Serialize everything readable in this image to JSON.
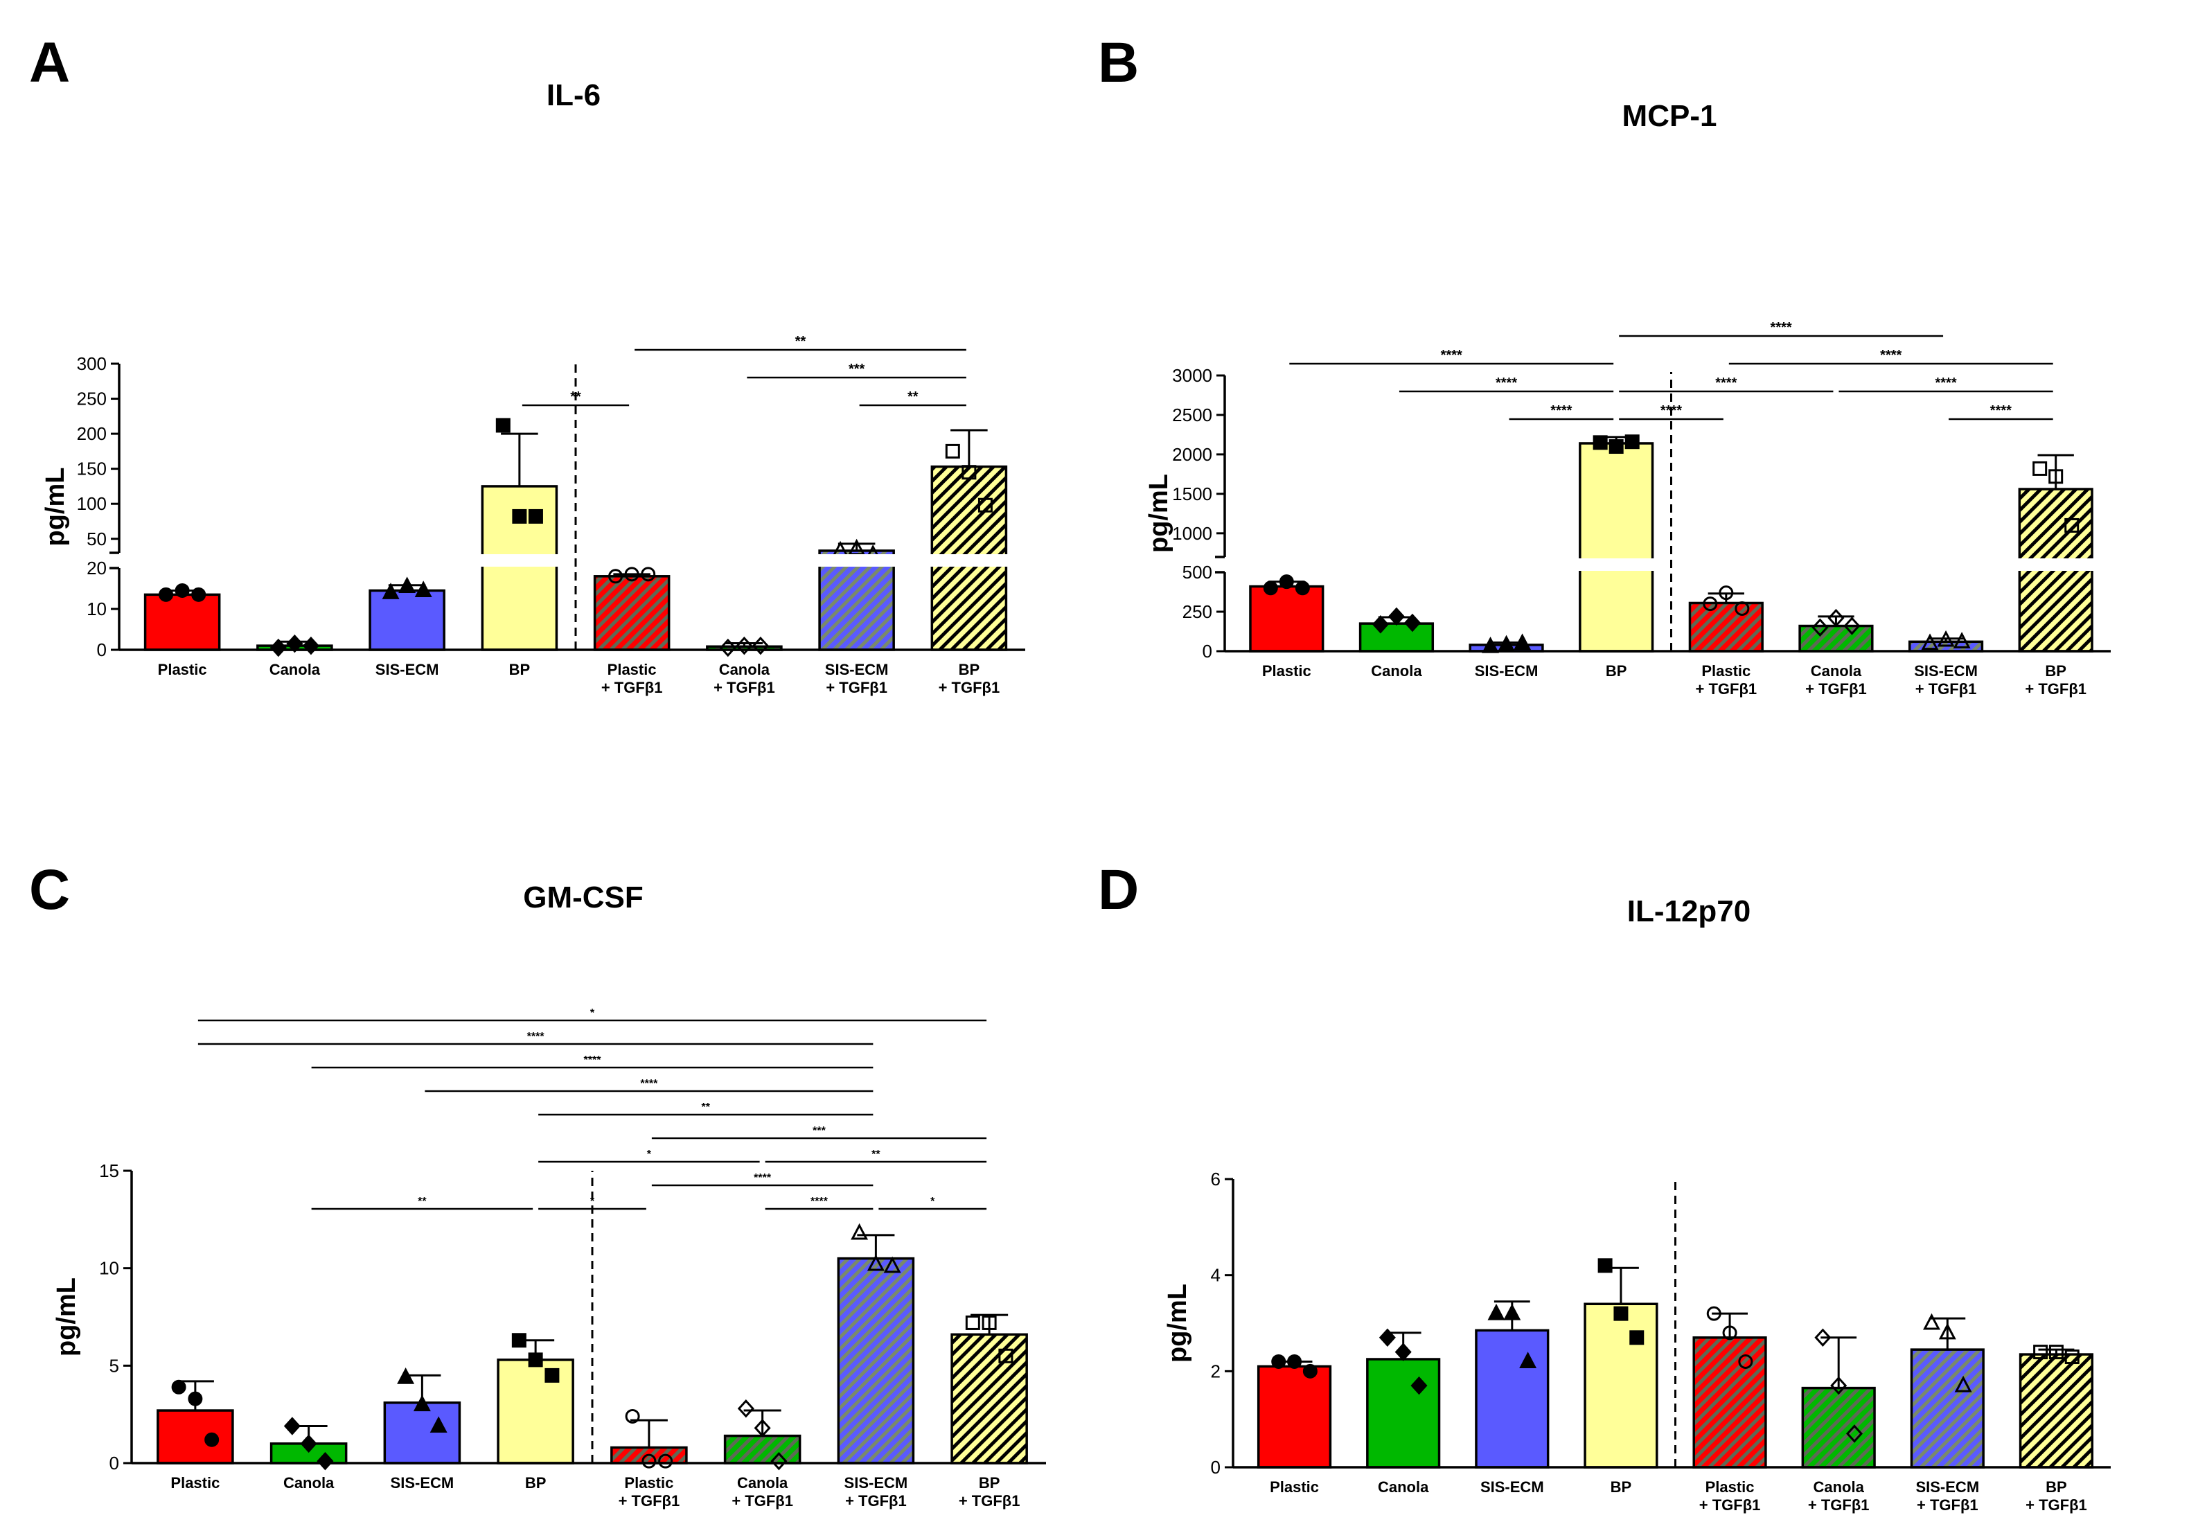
{
  "figure": {
    "colors": {
      "red": "#ff0000",
      "green": "#00b800",
      "blue": "#5a5aff",
      "yellow": "#ffff99",
      "hatch_dark": "#5e6a55",
      "hatch_light": "#ffffff",
      "axis": "#000000"
    },
    "categories": [
      "Plastic",
      "Canola",
      "SIS-ECM",
      "BP",
      "Plastic\n+ TGFβ1",
      "Canola\n+ TGFβ1",
      "SIS-ECM\n+ TGFβ1",
      "BP\n+ TGFβ1"
    ],
    "bar_styles": [
      {
        "fill": "#ff0000",
        "hatch": false,
        "marker": "circle",
        "filled": true
      },
      {
        "fill": "#00b800",
        "hatch": false,
        "marker": "diamond",
        "filled": true
      },
      {
        "fill": "#5a5aff",
        "hatch": false,
        "marker": "triangle",
        "filled": true
      },
      {
        "fill": "#ffff99",
        "hatch": false,
        "marker": "square",
        "filled": true
      },
      {
        "fill": "#ff0000",
        "hatch": true,
        "marker": "circle",
        "filled": false
      },
      {
        "fill": "#00b800",
        "hatch": true,
        "marker": "diamond",
        "filled": false
      },
      {
        "fill": "#5a5aff",
        "hatch": true,
        "marker": "triangle",
        "filled": false
      },
      {
        "fill": "#ffff99",
        "hatch": true,
        "marker": "square",
        "filled": false
      }
    ]
  },
  "chart_data": [
    {
      "panel": "A",
      "type": "bar",
      "title": "IL-6",
      "ylabel": "pg/mL",
      "xlabel": "",
      "axis_break": {
        "lower": [
          0,
          20
        ],
        "upper": [
          30,
          300
        ]
      },
      "lower_ticks": [
        0,
        10,
        20
      ],
      "upper_ticks": [
        50,
        100,
        150,
        200,
        250,
        300
      ],
      "means": [
        13.5,
        1.0,
        14.5,
        125,
        18.0,
        0.8,
        33,
        153
      ],
      "errors": [
        1.0,
        1.0,
        1.3,
        75,
        0.5,
        0.8,
        10,
        52
      ],
      "points": [
        [
          13.5,
          14.5,
          13.5
        ],
        [
          0.5,
          1.5,
          1.0
        ],
        [
          14,
          15.5,
          14.5
        ],
        [
          212,
          82,
          82
        ],
        [
          18,
          18.5,
          18.5
        ],
        [
          0.5,
          1.0,
          1.0
        ],
        [
          33,
          36,
          29
        ],
        [
          175,
          145,
          98
        ]
      ],
      "significance": [
        {
          "from": 3,
          "to": 4,
          "label": "**",
          "level": 1
        },
        {
          "from": 6,
          "to": 7,
          "label": "**",
          "level": 1
        },
        {
          "from": 5,
          "to": 7,
          "label": "***",
          "level": 2
        },
        {
          "from": 4,
          "to": 7,
          "label": "**",
          "level": 3
        }
      ]
    },
    {
      "panel": "B",
      "type": "bar",
      "title": "MCP-1",
      "ylabel": "pg/mL",
      "xlabel": "",
      "axis_break": {
        "lower": [
          0,
          500
        ],
        "upper": [
          700,
          3000
        ]
      },
      "lower_ticks": [
        0,
        250,
        500
      ],
      "upper_ticks": [
        1000,
        1500,
        2000,
        2500,
        3000
      ],
      "means": [
        410,
        175,
        40,
        2140,
        305,
        160,
        60,
        1560
      ],
      "errors": [
        30,
        40,
        15,
        80,
        60,
        60,
        20,
        430
      ],
      "points": [
        [
          400,
          440,
          400
        ],
        [
          170,
          220,
          180
        ],
        [
          30,
          40,
          50
        ],
        [
          2150,
          2100,
          2160
        ],
        [
          300,
          370,
          270
        ],
        [
          150,
          210,
          160
        ],
        [
          50,
          70,
          60
        ],
        [
          1820,
          1720,
          1100
        ]
      ],
      "significance": [
        {
          "from": 2,
          "to": 3,
          "label": "****",
          "level": 1
        },
        {
          "from": 3,
          "to": 4,
          "label": "****",
          "level": 1
        },
        {
          "from": 6,
          "to": 7,
          "label": "****",
          "level": 1
        },
        {
          "from": 1,
          "to": 3,
          "label": "****",
          "level": 2
        },
        {
          "from": 3,
          "to": 5,
          "label": "****",
          "level": 2
        },
        {
          "from": 5,
          "to": 7,
          "label": "****",
          "level": 2
        },
        {
          "from": 0,
          "to": 3,
          "label": "****",
          "level": 3
        },
        {
          "from": 4,
          "to": 7,
          "label": "****",
          "level": 3
        },
        {
          "from": 3,
          "to": 6,
          "label": "****",
          "level": 4
        }
      ]
    },
    {
      "panel": "C",
      "type": "bar",
      "title": "GM-CSF",
      "ylabel": "pg/mL",
      "xlabel": "",
      "ylim": [
        0,
        15
      ],
      "ticks": [
        0,
        5,
        10,
        15
      ],
      "means": [
        2.7,
        1.0,
        3.1,
        5.3,
        0.8,
        1.4,
        10.5,
        6.6
      ],
      "errors": [
        1.5,
        0.9,
        1.4,
        1.0,
        1.4,
        1.3,
        1.2,
        1.0
      ],
      "points": [
        [
          3.9,
          3.3,
          1.2
        ],
        [
          1.9,
          1.0,
          0.1
        ],
        [
          4.4,
          3.0,
          1.9
        ],
        [
          6.3,
          5.3,
          4.5
        ],
        [
          2.4,
          0.1,
          0.1
        ],
        [
          2.8,
          1.8,
          0.1
        ],
        [
          11.8,
          10.2,
          10.1
        ],
        [
          7.2,
          7.2,
          5.5
        ]
      ],
      "significance": [
        {
          "from": 1,
          "to": 3,
          "label": "**",
          "level": 1
        },
        {
          "from": 3,
          "to": 4,
          "label": "*",
          "level": 1
        },
        {
          "from": 6,
          "to": 7,
          "label": "*",
          "level": 1
        },
        {
          "from": 5,
          "to": 6,
          "label": "****",
          "level": 1
        },
        {
          "from": 4,
          "to": 6,
          "label": "****",
          "level": 2
        },
        {
          "from": 3,
          "to": 5,
          "label": "*",
          "level": 3
        },
        {
          "from": 5,
          "to": 7,
          "label": "**",
          "level": 3
        },
        {
          "from": 4,
          "to": 7,
          "label": "***",
          "level": 4
        },
        {
          "from": 3,
          "to": 6,
          "label": "**",
          "level": 5
        },
        {
          "from": 2,
          "to": 6,
          "label": "****",
          "level": 6
        },
        {
          "from": 1,
          "to": 6,
          "label": "****",
          "level": 7
        },
        {
          "from": 0,
          "to": 6,
          "label": "****",
          "level": 8
        },
        {
          "from": 0,
          "to": 7,
          "label": "*",
          "level": 9
        }
      ]
    },
    {
      "panel": "D",
      "type": "bar",
      "title": "IL-12p70",
      "ylabel": "pg/mL",
      "xlabel": "",
      "ylim": [
        0,
        6
      ],
      "ticks": [
        0,
        2,
        4,
        6
      ],
      "means": [
        2.1,
        2.25,
        2.85,
        3.4,
        2.7,
        1.65,
        2.45,
        2.35
      ],
      "errors": [
        0.1,
        0.55,
        0.6,
        0.75,
        0.5,
        1.05,
        0.65,
        0.1
      ],
      "points": [
        [
          2.2,
          2.2,
          2.0
        ],
        [
          2.7,
          2.4,
          1.7
        ],
        [
          3.2,
          3.2,
          2.2
        ],
        [
          4.2,
          3.2,
          2.7
        ],
        [
          3.2,
          2.8,
          2.2
        ],
        [
          2.7,
          1.7,
          0.7
        ],
        [
          3.0,
          2.8,
          1.7
        ],
        [
          2.4,
          2.4,
          2.3
        ]
      ],
      "significance": []
    }
  ],
  "panel_labels": [
    "A",
    "B",
    "C",
    "D"
  ]
}
